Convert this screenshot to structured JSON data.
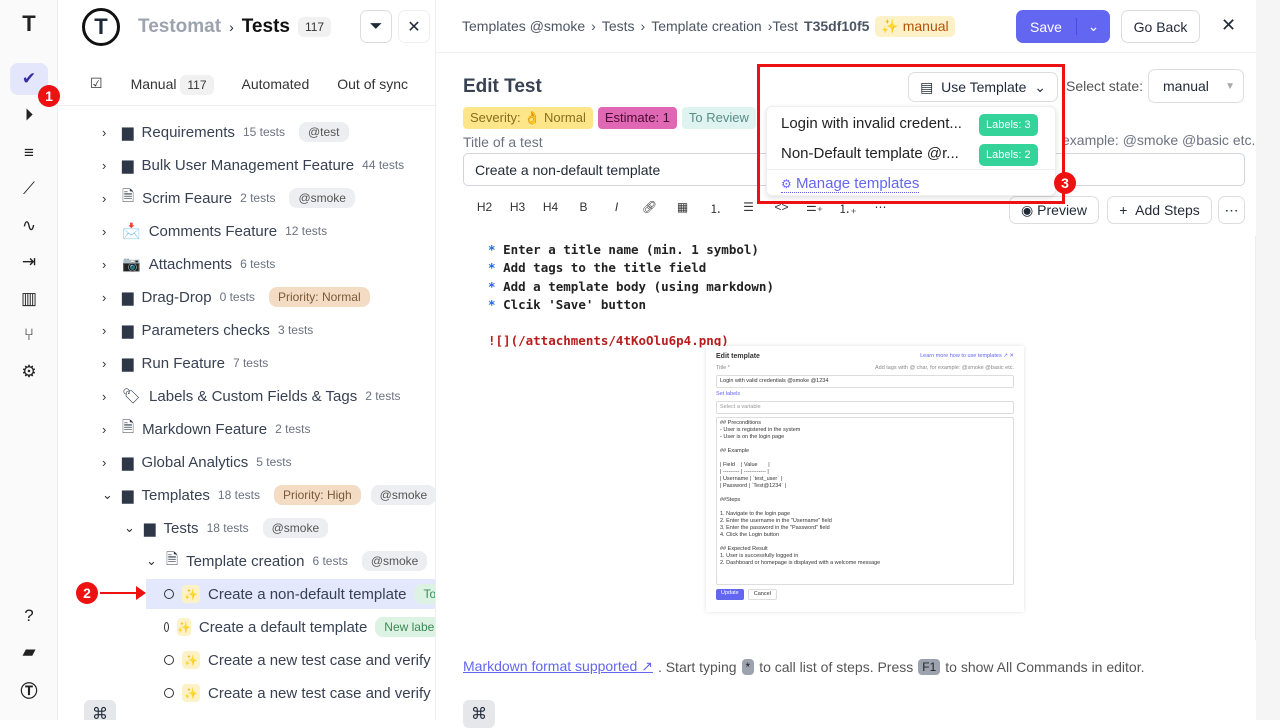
{
  "rail": {
    "items": [
      "logo",
      "tests",
      "runs",
      "plans",
      "steps",
      "pulse",
      "imports",
      "analytics",
      "branches",
      "settings",
      "help",
      "projects",
      "profile"
    ],
    "marker_1": "1"
  },
  "header": {
    "app": "Testomat",
    "section": "Tests",
    "count": "117"
  },
  "tabs": [
    {
      "label": "Manual",
      "count": "117"
    },
    {
      "label": "Automated"
    },
    {
      "label": "Out of sync"
    }
  ],
  "tree": [
    {
      "name": "Requirements",
      "count": "15 tests",
      "tags": [
        "@test"
      ],
      "icon": "folder"
    },
    {
      "name": "Bulk User Management Feature",
      "count": "44 tests",
      "tags": [],
      "icon": "folder"
    },
    {
      "name": "Scrim Feaure",
      "count": "2 tests",
      "tags": [
        "@smoke"
      ],
      "icon": "file-check"
    },
    {
      "name": "Comments Feature",
      "count": "12 tests",
      "tags": [],
      "icon": "mailbox-emoji"
    },
    {
      "name": "Attachments",
      "count": "6 tests",
      "tags": [],
      "icon": "camera-emoji"
    },
    {
      "name": "Drag-Drop",
      "count": "0 tests",
      "tags": [
        "Priority: Normal"
      ],
      "icon": "folder"
    },
    {
      "name": "Parameters checks",
      "count": "3 tests",
      "tags": [],
      "icon": "folder"
    },
    {
      "name": "Run Feature",
      "count": "7 tests",
      "tags": [],
      "icon": "folder"
    },
    {
      "name": "Labels & Custom Fields & Tags",
      "count": "2 tests",
      "tags": [],
      "icon": "label-emoji"
    },
    {
      "name": "Markdown Feature",
      "count": "2 tests",
      "tags": [],
      "icon": "file-check"
    },
    {
      "name": "Global Analytics",
      "count": "5 tests",
      "tags": [],
      "icon": "folder"
    },
    {
      "name": "Templates",
      "count": "18 tests",
      "tags": [
        "Priority: High",
        "@smoke"
      ],
      "icon": "folder",
      "expanded": true
    },
    {
      "name": "Tests",
      "count": "18 tests",
      "tags": [
        "@smoke"
      ],
      "icon": "folder",
      "expanded": true
    },
    {
      "name": "Template creation",
      "count": "6 tests",
      "tags": [
        "@smoke"
      ],
      "icon": "file-check",
      "expanded": true
    }
  ],
  "tests": [
    {
      "name": "Create a non-default template",
      "tag": "To",
      "selected": true
    },
    {
      "name": "Create a default template",
      "tag": "New label"
    },
    {
      "name": "Create a new test case and verify"
    },
    {
      "name": "Create a new test case and verify"
    }
  ],
  "marker_2": "2",
  "marker_3": "3",
  "editor": {
    "breadcrumb": [
      "Templates @smoke",
      "Tests",
      "Template creation"
    ],
    "test_prefix": "›Test",
    "test_id": "T35df10f5",
    "state_badge": "manual",
    "save": "Save",
    "go_back": "Go Back",
    "title": "Edit Test",
    "use_template": "Use Template",
    "select_state_label": "Select state:",
    "select_state_value": "manual",
    "tags": {
      "severity": "Severity: 👌 Normal",
      "estimate": "Estimate: 1",
      "review": "To Review"
    },
    "title_label": "Title of a test",
    "tags_hint": "example: @smoke @basic etc.",
    "title_value": "Create a non-default template",
    "toolbar": [
      "H2",
      "H3",
      "H4",
      "B",
      "I",
      "link",
      "table",
      "ol",
      "ul",
      "<>",
      "steps",
      "numbered-steps",
      "more"
    ],
    "preview": "Preview",
    "add_steps": "Add Steps",
    "body": [
      "Enter a title name (min. 1 symbol)",
      "Add tags to the title field",
      "Add a template body (using markdown)",
      "Clcik 'Save' button"
    ],
    "image_link": "![](/attachments/4tKoOlu6p4.png)",
    "footer": {
      "link": "Markdown format supported",
      "t1": ". Start typing",
      "k1": "*",
      "t2": "to call list of steps. Press",
      "k2": "F1",
      "t3": "to show All Commands in editor."
    }
  },
  "templates_dropdown": {
    "items": [
      {
        "name": "Login with invalid credent...",
        "labels": "Labels: 3"
      },
      {
        "name": "Non-Default template @r...",
        "labels": "Labels: 2"
      }
    ],
    "manage": "Manage templates"
  },
  "embedded": {
    "title": "Edit template",
    "learn": "Learn more how to use templates",
    "field_label": "Title *",
    "hint": "Add tags with @ char, for example: @smoke @basic etc.",
    "value": "Login with valid credentials @smoke @1234",
    "set_labels": "Set labels",
    "variable": "Select a variable",
    "body": [
      "## Preconditions",
      "- User is registered in the system",
      "- User is on the login page",
      "",
      "## Example",
      "",
      "| Field    | Value       |",
      "| --------- | ------------ |",
      "| Username | `test_user` |",
      "| Password | `Test@1234` |",
      "",
      "##Steps",
      "",
      "1. Navigate to the login page",
      "2. Enter the username in the \"Username\" field",
      "3. Enter the password in the \"Password\" field",
      "4. Click the Login button",
      "",
      "## Expected Result",
      "1. User is successfully logged in",
      "2. Dashboard or homepage is displayed with a welcome message"
    ],
    "update": "Update",
    "cancel": "Cancel"
  },
  "colors": {
    "accent": "#6366f1",
    "marker": "#ee1111",
    "label_green": "#34d399"
  }
}
